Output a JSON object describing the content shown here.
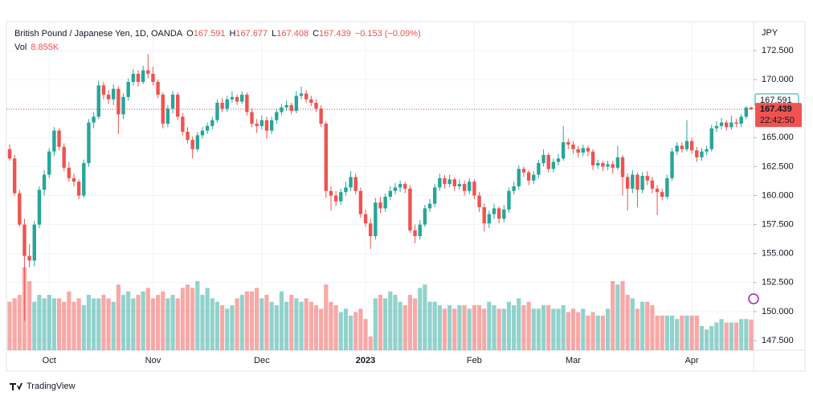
{
  "chart_data": {
    "type": "candlestick",
    "legend": {
      "symbol": "British Pound / Japanese Yen, 1D, OANDA",
      "ohlc": [
        {
          "label": "O",
          "value": "167.591"
        },
        {
          "label": "H",
          "value": "167.677"
        },
        {
          "label": "L",
          "value": "167.408"
        },
        {
          "label": "C",
          "value": "167.439"
        }
      ],
      "change": "−0.153 (−0.09%)",
      "volume_label": "Vol",
      "volume_value": "8.855K"
    },
    "y_unit": "JPY",
    "price_labels": {
      "previous": "167.591",
      "last": "167.439",
      "countdown": "22:42:50"
    },
    "brand": "TradingView",
    "up_color": "#26a69a",
    "down_color": "#ef5350",
    "grid": true,
    "ylim": [
      147.5,
      172.5
    ],
    "yticks": [
      {
        "value": 147.5,
        "label": "147.500"
      },
      {
        "value": 150,
        "label": "150.000"
      },
      {
        "value": 152.5,
        "label": "152.500"
      },
      {
        "value": 155,
        "label": "155.000"
      },
      {
        "value": 157.5,
        "label": "157.500"
      },
      {
        "value": 160,
        "label": "160.000"
      },
      {
        "value": 162.5,
        "label": "162.500"
      },
      {
        "value": 165,
        "label": "165.000"
      },
      {
        "value": 167.5,
        "label": "167.500"
      },
      {
        "value": 170,
        "label": "170.000"
      },
      {
        "value": 172.5,
        "label": "172.500"
      }
    ],
    "volume_ylim": [
      0,
      95
    ],
    "categories": [
      null,
      null,
      null,
      null,
      null,
      null,
      null,
      null,
      "Oct",
      null,
      null,
      null,
      null,
      null,
      null,
      null,
      null,
      null,
      null,
      null,
      null,
      null,
      null,
      null,
      null,
      null,
      null,
      null,
      null,
      "Nov",
      null,
      null,
      null,
      null,
      null,
      null,
      null,
      null,
      null,
      null,
      null,
      null,
      null,
      null,
      null,
      null,
      null,
      null,
      null,
      null,
      null,
      "Dec",
      null,
      null,
      null,
      null,
      null,
      null,
      null,
      null,
      null,
      null,
      null,
      null,
      null,
      null,
      null,
      null,
      null,
      null,
      null,
      null,
      "2023",
      null,
      null,
      null,
      null,
      null,
      null,
      null,
      null,
      null,
      null,
      null,
      null,
      null,
      null,
      null,
      null,
      null,
      null,
      null,
      null,
      null,
      "Feb",
      null,
      null,
      null,
      null,
      null,
      null,
      null,
      null,
      null,
      null,
      null,
      null,
      null,
      null,
      null,
      null,
      null,
      null,
      null,
      "Mar",
      null,
      null,
      null,
      null,
      null,
      null,
      null,
      null,
      null,
      null,
      null,
      null,
      null,
      null,
      null,
      null,
      null,
      null,
      null,
      null,
      null,
      null,
      null,
      "Apr",
      null,
      null,
      null,
      null,
      null,
      null,
      null,
      null,
      null,
      null,
      null,
      null
    ],
    "ohlc": [
      [
        164.0,
        164.4,
        163.0,
        163.2
      ],
      [
        163.2,
        163.5,
        160.0,
        160.2
      ],
      [
        160.2,
        160.5,
        157.3,
        157.5
      ],
      [
        157.5,
        158.0,
        149.2,
        154.8
      ],
      [
        154.8,
        155.8,
        153.8,
        154.4
      ],
      [
        154.4,
        157.8,
        153.9,
        157.5
      ],
      [
        157.5,
        160.8,
        157.2,
        160.5
      ],
      [
        160.5,
        162.2,
        160.0,
        161.8
      ],
      [
        161.8,
        164.1,
        161.5,
        163.8
      ],
      [
        163.8,
        165.9,
        163.4,
        165.6
      ],
      [
        165.6,
        165.8,
        163.9,
        164.2
      ],
      [
        164.2,
        164.5,
        162.1,
        162.4
      ],
      [
        162.4,
        162.9,
        161.2,
        161.5
      ],
      [
        161.5,
        161.9,
        160.8,
        161.2
      ],
      [
        161.2,
        161.4,
        159.7,
        160.0
      ],
      [
        160.0,
        163.1,
        159.8,
        162.8
      ],
      [
        162.8,
        166.6,
        162.5,
        166.3
      ],
      [
        166.3,
        167.2,
        165.8,
        166.8
      ],
      [
        166.8,
        169.9,
        166.6,
        169.5
      ],
      [
        169.5,
        169.8,
        168.3,
        168.7
      ],
      [
        168.7,
        169.1,
        167.9,
        168.3
      ],
      [
        168.3,
        169.6,
        167.8,
        169.2
      ],
      [
        169.2,
        169.4,
        165.3,
        167.0
      ],
      [
        167.0,
        168.8,
        166.6,
        168.5
      ],
      [
        168.5,
        170.1,
        168.2,
        169.8
      ],
      [
        169.8,
        170.9,
        169.5,
        170.5
      ],
      [
        170.5,
        170.8,
        169.4,
        169.8
      ],
      [
        169.8,
        171.2,
        169.6,
        170.8
      ],
      [
        170.8,
        172.2,
        170.1,
        170.5
      ],
      [
        170.5,
        171.1,
        169.5,
        169.8
      ],
      [
        169.8,
        170.0,
        168.4,
        168.7
      ],
      [
        168.7,
        168.9,
        165.8,
        166.2
      ],
      [
        166.2,
        167.8,
        165.9,
        167.5
      ],
      [
        167.5,
        169.0,
        167.1,
        168.7
      ],
      [
        168.7,
        168.9,
        166.5,
        166.8
      ],
      [
        166.8,
        167.1,
        165.2,
        165.5
      ],
      [
        165.5,
        165.9,
        164.5,
        164.8
      ],
      [
        164.8,
        165.1,
        163.2,
        164.0
      ],
      [
        164.0,
        165.5,
        163.8,
        165.2
      ],
      [
        165.2,
        165.9,
        164.9,
        165.6
      ],
      [
        165.6,
        166.3,
        165.3,
        166.0
      ],
      [
        166.0,
        166.8,
        165.7,
        166.5
      ],
      [
        166.5,
        168.3,
        166.3,
        168.0
      ],
      [
        168.0,
        168.4,
        167.2,
        167.5
      ],
      [
        167.5,
        168.6,
        167.2,
        168.3
      ],
      [
        168.3,
        169.0,
        168.0,
        168.5
      ],
      [
        168.5,
        168.7,
        167.8,
        168.1
      ],
      [
        168.1,
        169.0,
        167.9,
        168.7
      ],
      [
        168.7,
        168.9,
        166.9,
        167.2
      ],
      [
        167.2,
        167.5,
        165.9,
        166.2
      ],
      [
        166.2,
        166.6,
        165.4,
        166.0
      ],
      [
        166.0,
        166.9,
        165.7,
        166.5
      ],
      [
        166.5,
        166.8,
        164.9,
        165.6
      ],
      [
        165.6,
        166.8,
        165.3,
        166.5
      ],
      [
        166.5,
        167.5,
        166.2,
        167.2
      ],
      [
        167.2,
        167.9,
        166.9,
        167.6
      ],
      [
        167.6,
        168.2,
        167.3,
        167.8
      ],
      [
        167.8,
        168.0,
        167.0,
        167.3
      ],
      [
        167.3,
        169.0,
        167.1,
        168.6
      ],
      [
        168.6,
        169.4,
        168.3,
        168.8
      ],
      [
        168.8,
        169.1,
        168.0,
        168.3
      ],
      [
        168.3,
        168.6,
        167.7,
        168.0
      ],
      [
        168.0,
        168.3,
        167.2,
        167.5
      ],
      [
        167.5,
        167.8,
        165.9,
        166.2
      ],
      [
        166.2,
        166.4,
        159.8,
        160.4
      ],
      [
        160.4,
        160.8,
        158.7,
        160.0
      ],
      [
        160.0,
        160.4,
        159.1,
        159.5
      ],
      [
        159.5,
        160.6,
        159.2,
        160.3
      ],
      [
        160.3,
        161.2,
        160.0,
        160.7
      ],
      [
        160.7,
        162.1,
        160.4,
        161.6
      ],
      [
        161.6,
        161.9,
        160.1,
        160.4
      ],
      [
        160.4,
        160.7,
        158.1,
        158.4
      ],
      [
        158.4,
        158.8,
        157.3,
        157.6
      ],
      [
        157.6,
        158.0,
        155.4,
        156.5
      ],
      [
        156.5,
        159.8,
        156.2,
        159.4
      ],
      [
        159.4,
        159.9,
        158.5,
        158.9
      ],
      [
        158.9,
        160.2,
        158.6,
        159.9
      ],
      [
        159.9,
        160.8,
        159.6,
        160.4
      ],
      [
        160.4,
        161.1,
        160.1,
        160.7
      ],
      [
        160.7,
        161.3,
        160.3,
        161.0
      ],
      [
        161.0,
        161.2,
        160.2,
        160.6
      ],
      [
        160.6,
        160.9,
        156.8,
        157.0
      ],
      [
        157.0,
        157.5,
        155.9,
        156.5
      ],
      [
        156.5,
        157.9,
        156.2,
        157.5
      ],
      [
        157.5,
        159.2,
        157.3,
        158.9
      ],
      [
        158.9,
        159.7,
        158.6,
        159.3
      ],
      [
        159.3,
        161.0,
        159.0,
        160.7
      ],
      [
        160.7,
        161.9,
        160.4,
        161.5
      ],
      [
        161.5,
        161.8,
        160.6,
        161.0
      ],
      [
        161.0,
        161.8,
        160.7,
        161.4
      ],
      [
        161.4,
        161.6,
        160.4,
        160.8
      ],
      [
        160.8,
        161.4,
        160.5,
        161.0
      ],
      [
        161.0,
        161.3,
        160.0,
        160.4
      ],
      [
        160.4,
        161.5,
        160.1,
        161.2
      ],
      [
        161.2,
        161.4,
        159.7,
        160.0
      ],
      [
        160.0,
        160.3,
        158.6,
        159.0
      ],
      [
        159.0,
        159.3,
        156.9,
        157.6
      ],
      [
        157.6,
        158.7,
        157.2,
        158.4
      ],
      [
        158.4,
        159.3,
        158.0,
        158.9
      ],
      [
        158.9,
        159.1,
        157.6,
        158.0
      ],
      [
        158.0,
        159.2,
        157.7,
        158.8
      ],
      [
        158.8,
        160.7,
        158.5,
        160.4
      ],
      [
        160.4,
        161.2,
        160.1,
        160.8
      ],
      [
        160.8,
        162.6,
        160.5,
        162.3
      ],
      [
        162.3,
        162.5,
        161.6,
        162.0
      ],
      [
        162.0,
        162.2,
        160.9,
        161.3
      ],
      [
        161.3,
        162.1,
        161.0,
        161.8
      ],
      [
        161.8,
        163.1,
        161.5,
        162.8
      ],
      [
        162.8,
        164.0,
        162.5,
        163.5
      ],
      [
        163.5,
        163.7,
        162.0,
        162.3
      ],
      [
        162.3,
        163.2,
        162.0,
        162.9
      ],
      [
        162.9,
        163.6,
        162.6,
        163.2
      ],
      [
        163.2,
        166.0,
        163.0,
        164.6
      ],
      [
        164.6,
        164.9,
        164.0,
        164.4
      ],
      [
        164.4,
        164.7,
        163.6,
        164.0
      ],
      [
        164.0,
        164.3,
        163.3,
        163.7
      ],
      [
        163.7,
        164.4,
        163.4,
        164.1
      ],
      [
        164.1,
        164.3,
        163.4,
        163.8
      ],
      [
        163.8,
        164.0,
        162.2,
        162.6
      ],
      [
        162.6,
        163.1,
        162.3,
        162.8
      ],
      [
        162.8,
        163.0,
        162.1,
        162.5
      ],
      [
        162.5,
        163.0,
        162.2,
        162.7
      ],
      [
        162.7,
        163.0,
        161.9,
        162.4
      ],
      [
        162.4,
        164.3,
        162.2,
        163.3
      ],
      [
        163.3,
        163.5,
        160.0,
        161.6
      ],
      [
        161.6,
        161.9,
        158.7,
        160.6
      ],
      [
        160.6,
        162.2,
        160.2,
        161.8
      ],
      [
        161.8,
        162.0,
        159.0,
        160.5
      ],
      [
        160.5,
        162.0,
        160.2,
        161.7
      ],
      [
        161.7,
        162.1,
        160.9,
        161.3
      ],
      [
        161.3,
        161.6,
        160.2,
        160.6
      ],
      [
        160.6,
        160.9,
        158.3,
        160.3
      ],
      [
        160.3,
        160.6,
        159.6,
        159.9
      ],
      [
        159.9,
        161.8,
        159.7,
        161.5
      ],
      [
        161.5,
        164.1,
        161.3,
        163.8
      ],
      [
        163.8,
        164.6,
        163.5,
        164.3
      ],
      [
        164.3,
        164.6,
        163.7,
        164.0
      ],
      [
        164.0,
        166.5,
        163.8,
        164.7
      ],
      [
        164.7,
        165.0,
        163.6,
        163.9
      ],
      [
        163.9,
        164.2,
        162.9,
        163.3
      ],
      [
        163.3,
        164.1,
        163.0,
        163.8
      ],
      [
        163.8,
        164.3,
        163.5,
        164.0
      ],
      [
        164.0,
        166.1,
        163.8,
        165.8
      ],
      [
        165.8,
        166.4,
        165.5,
        166.0
      ],
      [
        166.0,
        166.7,
        165.7,
        166.3
      ],
      [
        166.3,
        166.5,
        165.6,
        165.9
      ],
      [
        165.9,
        166.9,
        165.7,
        166.3
      ],
      [
        166.3,
        166.6,
        165.9,
        166.2
      ],
      [
        166.2,
        167.0,
        165.9,
        166.8
      ],
      [
        166.8,
        167.7,
        166.6,
        167.591
      ],
      [
        167.591,
        167.677,
        167.408,
        167.439
      ]
    ],
    "volume": [
      14,
      15,
      16,
      24,
      20,
      14,
      16,
      15,
      16,
      15,
      15,
      14,
      17,
      14,
      15,
      13,
      16,
      15,
      15,
      16,
      15,
      14,
      19,
      16,
      17,
      15,
      16,
      17,
      18,
      15,
      16,
      17,
      15,
      16,
      15,
      18,
      19,
      18,
      20,
      16,
      18,
      15,
      14,
      13,
      12,
      13,
      15,
      16,
      17,
      17,
      18,
      15,
      16,
      14,
      13,
      17,
      14,
      16,
      15,
      14,
      15,
      14,
      13,
      12,
      19,
      14,
      13,
      11,
      12,
      10,
      11,
      12,
      9,
      4,
      15,
      16,
      15,
      17,
      16,
      14,
      13,
      16,
      15,
      18,
      19,
      14,
      14,
      13,
      12,
      13,
      12,
      13,
      13,
      12,
      13,
      13,
      12,
      14,
      13,
      12,
      12,
      14,
      13,
      15,
      13,
      14,
      12,
      12,
      13,
      13,
      12,
      12,
      13,
      11,
      12,
      11,
      12,
      10,
      11,
      10,
      10,
      12,
      20,
      19,
      20,
      16,
      15,
      12,
      14,
      14,
      13,
      10,
      10,
      10,
      10,
      9,
      10,
      10,
      10,
      10,
      7,
      6,
      7,
      8,
      9,
      8,
      8,
      8,
      9,
      9,
      8.855
    ]
  }
}
